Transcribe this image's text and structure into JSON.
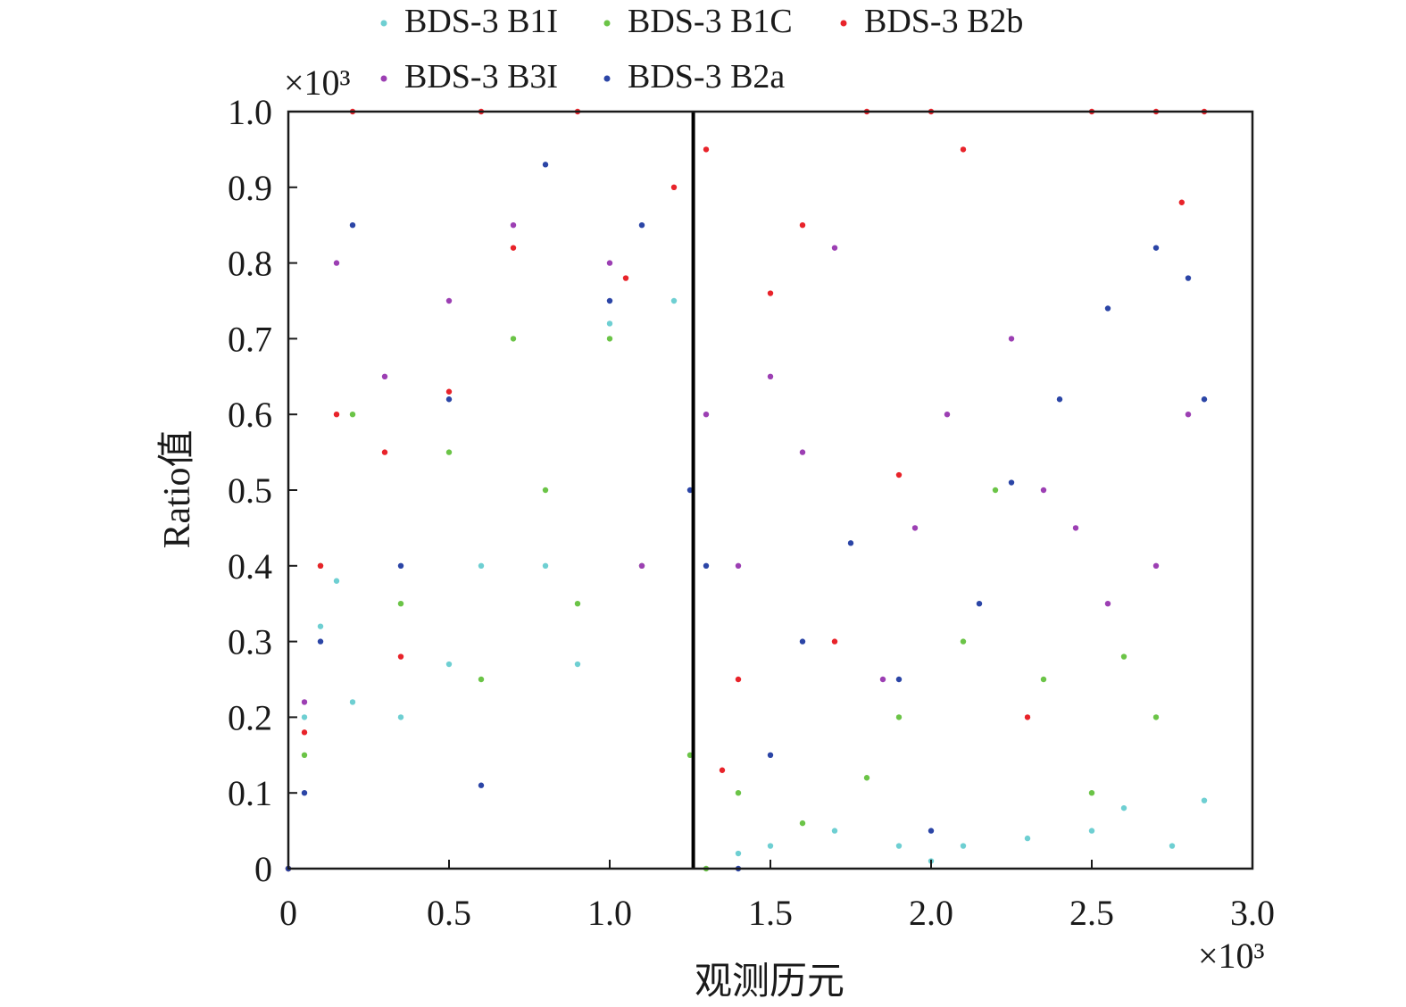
{
  "chart_data": {
    "type": "scatter",
    "title": "",
    "xlabel": "观测历元",
    "ylabel": "Ratio值",
    "xlim": [
      0,
      3.0
    ],
    "ylim": [
      0,
      1.0
    ],
    "x_scale_label": "×10³",
    "y_scale_label": "×10³",
    "x_tick_labels": [
      "0",
      "0.5",
      "1.0",
      "1.5",
      "2.0",
      "2.5",
      "3.0"
    ],
    "y_tick_labels": [
      "0",
      "0.1",
      "0.2",
      "0.3",
      "0.4",
      "0.5",
      "0.6",
      "0.7",
      "0.8",
      "0.9",
      "1.0"
    ],
    "vertical_marker_x": 1.26,
    "legend_position": "top",
    "grid": false,
    "series": [
      {
        "name": "BDS-3 B1I",
        "color": "#6ecfd2",
        "points": [
          [
            0.0,
            0.0
          ],
          [
            0.05,
            0.2
          ],
          [
            0.1,
            0.32
          ],
          [
            0.15,
            0.38
          ],
          [
            0.2,
            0.22
          ],
          [
            0.35,
            0.2
          ],
          [
            0.5,
            0.27
          ],
          [
            0.6,
            0.4
          ],
          [
            0.8,
            0.4
          ],
          [
            0.9,
            0.27
          ],
          [
            1.0,
            0.72
          ],
          [
            1.2,
            0.75
          ],
          [
            1.4,
            0.02
          ],
          [
            1.5,
            0.03
          ],
          [
            1.7,
            0.05
          ],
          [
            1.9,
            0.03
          ],
          [
            2.0,
            0.01
          ],
          [
            2.1,
            0.03
          ],
          [
            2.3,
            0.04
          ],
          [
            2.5,
            0.05
          ],
          [
            2.6,
            0.08
          ],
          [
            2.75,
            0.03
          ],
          [
            2.85,
            0.09
          ]
        ]
      },
      {
        "name": "BDS-3 B1C",
        "color": "#6bc447",
        "points": [
          [
            0.0,
            0.0
          ],
          [
            0.05,
            0.15
          ],
          [
            0.1,
            0.4
          ],
          [
            0.2,
            0.6
          ],
          [
            0.35,
            0.35
          ],
          [
            0.5,
            0.55
          ],
          [
            0.6,
            0.25
          ],
          [
            0.7,
            0.7
          ],
          [
            0.8,
            0.5
          ],
          [
            0.9,
            0.35
          ],
          [
            1.0,
            0.7
          ],
          [
            1.1,
            0.4
          ],
          [
            1.25,
            0.15
          ],
          [
            1.3,
            0.0
          ],
          [
            1.4,
            0.1
          ],
          [
            1.6,
            0.06
          ],
          [
            1.8,
            0.12
          ],
          [
            1.9,
            0.2
          ],
          [
            2.1,
            0.3
          ],
          [
            2.2,
            0.5
          ],
          [
            2.35,
            0.25
          ],
          [
            2.5,
            0.1
          ],
          [
            2.6,
            0.28
          ],
          [
            2.7,
            0.2
          ]
        ]
      },
      {
        "name": "BDS-3 B2b",
        "color": "#e8232a",
        "points": [
          [
            0.0,
            0.0
          ],
          [
            0.05,
            0.18
          ],
          [
            0.1,
            0.4
          ],
          [
            0.15,
            0.6
          ],
          [
            0.2,
            1.0
          ],
          [
            0.3,
            0.55
          ],
          [
            0.35,
            0.28
          ],
          [
            0.5,
            0.63
          ],
          [
            0.6,
            1.0
          ],
          [
            0.7,
            0.82
          ],
          [
            0.9,
            1.0
          ],
          [
            1.05,
            0.78
          ],
          [
            1.2,
            0.9
          ],
          [
            1.3,
            0.95
          ],
          [
            1.35,
            0.13
          ],
          [
            1.4,
            0.25
          ],
          [
            1.5,
            0.76
          ],
          [
            1.6,
            0.85
          ],
          [
            1.7,
            0.3
          ],
          [
            1.8,
            1.0
          ],
          [
            1.9,
            0.52
          ],
          [
            2.0,
            1.0
          ],
          [
            2.1,
            0.95
          ],
          [
            2.3,
            0.2
          ],
          [
            2.5,
            1.0
          ],
          [
            2.7,
            1.0
          ],
          [
            2.78,
            0.88
          ],
          [
            2.85,
            1.0
          ]
        ]
      },
      {
        "name": "BDS-3 B3I",
        "color": "#9c3fb3",
        "points": [
          [
            0.0,
            0.0
          ],
          [
            0.05,
            0.22
          ],
          [
            0.15,
            0.8
          ],
          [
            0.3,
            0.65
          ],
          [
            0.5,
            0.75
          ],
          [
            0.7,
            0.85
          ],
          [
            1.0,
            0.8
          ],
          [
            1.1,
            0.4
          ],
          [
            1.3,
            0.6
          ],
          [
            1.4,
            0.4
          ],
          [
            1.5,
            0.65
          ],
          [
            1.6,
            0.55
          ],
          [
            1.7,
            0.82
          ],
          [
            1.85,
            0.25
          ],
          [
            1.95,
            0.45
          ],
          [
            2.05,
            0.6
          ],
          [
            2.25,
            0.7
          ],
          [
            2.35,
            0.5
          ],
          [
            2.45,
            0.45
          ],
          [
            2.55,
            0.35
          ],
          [
            2.7,
            0.4
          ],
          [
            2.8,
            0.6
          ]
        ]
      },
      {
        "name": "BDS-3 B2a",
        "color": "#2b45a6",
        "points": [
          [
            0.0,
            0.0
          ],
          [
            0.05,
            0.1
          ],
          [
            0.1,
            0.3
          ],
          [
            0.2,
            0.85
          ],
          [
            0.35,
            0.4
          ],
          [
            0.5,
            0.62
          ],
          [
            0.6,
            0.11
          ],
          [
            0.8,
            0.93
          ],
          [
            1.0,
            0.75
          ],
          [
            1.1,
            0.85
          ],
          [
            1.25,
            0.5
          ],
          [
            1.3,
            0.4
          ],
          [
            1.4,
            0.0
          ],
          [
            1.5,
            0.15
          ],
          [
            1.6,
            0.3
          ],
          [
            1.75,
            0.43
          ],
          [
            1.9,
            0.25
          ],
          [
            2.0,
            0.05
          ],
          [
            2.15,
            0.35
          ],
          [
            2.25,
            0.51
          ],
          [
            2.4,
            0.62
          ],
          [
            2.55,
            0.74
          ],
          [
            2.7,
            0.82
          ],
          [
            2.8,
            0.78
          ],
          [
            2.85,
            0.62
          ]
        ]
      }
    ]
  }
}
